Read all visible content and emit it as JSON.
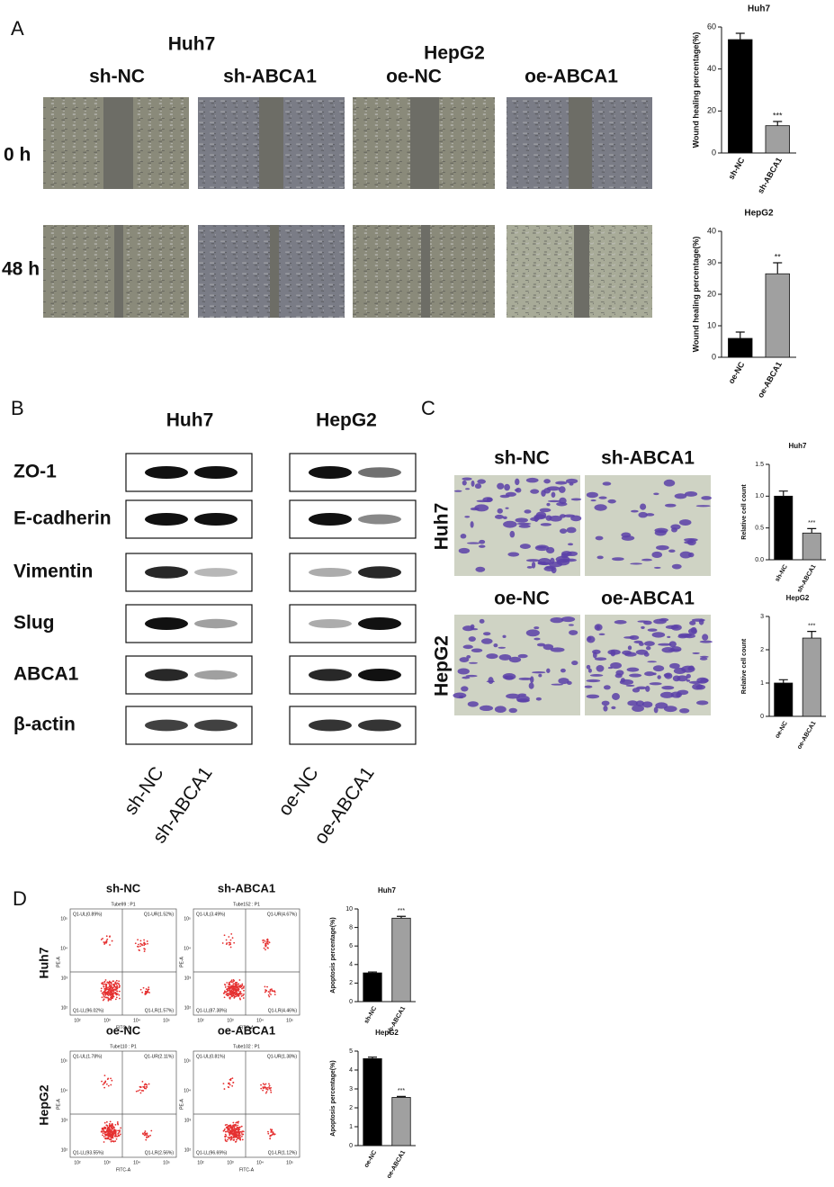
{
  "panel_letters": [
    "A",
    "B",
    "C",
    "D"
  ],
  "panel_a": {
    "groups": [
      "Huh7",
      "HepG2"
    ],
    "columns": [
      "sh-NC",
      "sh-ABCA1",
      "oe-NC",
      "oe-ABCA1"
    ],
    "rows": [
      "0 h",
      "48 h"
    ]
  },
  "panel_b": {
    "groups": [
      "Huh7",
      "HepG2"
    ],
    "proteins": [
      "ZO-1",
      "E-cadherin",
      "Vimentin",
      "Slug",
      "ABCA1",
      "β-actin"
    ],
    "lanes": [
      "sh-NC",
      "sh-ABCA1",
      "oe-NC",
      "oe-ABCA1"
    ]
  },
  "panel_c": {
    "columns": [
      "sh-NC",
      "sh-ABCA1",
      "oe-NC",
      "oe-ABCA1"
    ],
    "rows": [
      "Huh7",
      "HepG2"
    ]
  },
  "panel_d": {
    "rows": [
      "Huh7",
      "HepG2"
    ],
    "x_label": "FITC-A",
    "y_label": "PE-A",
    "axis_ticks": [
      "10²",
      "10³",
      "10⁴",
      "10⁵"
    ],
    "plots": [
      {
        "title": "sh-NC",
        "tube": "Tube99 : P1",
        "ul": "Q1-UL(0.89%)",
        "ur": "Q1-UR(1.52%)",
        "ll": "Q1-LL(96.02%)",
        "lr": "Q1-LR(1.57%)"
      },
      {
        "title": "sh-ABCA1",
        "tube": "Tube152 : P1",
        "ul": "Q1-UL(3.49%)",
        "ur": "Q1-UR(4.67%)",
        "ll": "Q1-LL(87.38%)",
        "lr": "Q1-LR(4.46%)"
      },
      {
        "title": "oe-NC",
        "tube": "Tube110 : P1",
        "ul": "Q1-UL(1.78%)",
        "ur": "Q1-UR(2.11%)",
        "ll": "Q1-LL(93.55%)",
        "lr": "Q1-LR(2.56%)"
      },
      {
        "title": "oe-ABCA1",
        "tube": "Tube102 : P1",
        "ul": "Q1-UL(0.81%)",
        "ur": "Q1-UR(1.38%)",
        "ll": "Q1-LL(96.69%)",
        "lr": "Q1-LR(1.12%)"
      }
    ]
  },
  "chart_data": [
    {
      "type": "bar",
      "title": "Huh7",
      "y_label": "Wound healing percentage(%)",
      "categories": [
        "sh-NC",
        "sh-ABCA1"
      ],
      "values": [
        54,
        13
      ],
      "errors": [
        3,
        2
      ],
      "colors": [
        "#000000",
        "#a0a0a0"
      ],
      "annotations": [
        null,
        "***"
      ],
      "ylim": [
        0,
        60
      ],
      "yticks": [
        0,
        20,
        40,
        60
      ]
    },
    {
      "type": "bar",
      "title": "HepG2",
      "y_label": "Wound healing percentage(%)",
      "categories": [
        "oe-NC",
        "oe-ABCA1"
      ],
      "values": [
        6,
        26.5
      ],
      "errors": [
        2,
        3.5
      ],
      "colors": [
        "#000000",
        "#a0a0a0"
      ],
      "annotations": [
        null,
        "**"
      ],
      "ylim": [
        0,
        40
      ],
      "yticks": [
        0,
        10,
        20,
        30,
        40
      ]
    },
    {
      "type": "bar",
      "title": "Huh7",
      "y_label": "Relative cell count",
      "categories": [
        "sh-NC",
        "sh-ABCA1"
      ],
      "values": [
        1.0,
        0.42
      ],
      "errors": [
        0.08,
        0.07
      ],
      "colors": [
        "#000000",
        "#a0a0a0"
      ],
      "annotations": [
        null,
        "***"
      ],
      "ylim": [
        0,
        1.5
      ],
      "yticks": [
        {
          "value": 0,
          "label": "0.0"
        },
        0.5,
        {
          "value": 1,
          "label": "1.0"
        },
        1.5
      ]
    },
    {
      "type": "bar",
      "title": "HepG2",
      "y_label": "Relative cell count",
      "categories": [
        "oe-NC",
        "oe-ABCA1"
      ],
      "values": [
        1.0,
        2.35
      ],
      "errors": [
        0.1,
        0.2
      ],
      "colors": [
        "#000000",
        "#a0a0a0"
      ],
      "annotations": [
        null,
        "***"
      ],
      "ylim": [
        0,
        3
      ],
      "yticks": [
        0,
        1,
        2,
        3
      ]
    },
    {
      "type": "bar",
      "title": "Huh7",
      "y_label": "Apoptosis percentage(%)",
      "categories": [
        "sh-NC",
        "sh-ABCA1"
      ],
      "values": [
        3.1,
        9.0
      ],
      "errors": [
        0.1,
        0.2
      ],
      "colors": [
        "#000000",
        "#a0a0a0"
      ],
      "annotations": [
        null,
        "***"
      ],
      "ylim": [
        0,
        10
      ],
      "yticks": [
        0,
        2,
        4,
        6,
        8,
        10
      ]
    },
    {
      "type": "bar",
      "title": "HepG2",
      "y_label": "Apoptosis percentage(%)",
      "categories": [
        "oe-NC",
        "oe-ABCA1"
      ],
      "values": [
        4.6,
        2.55
      ],
      "errors": [
        0.08,
        0.05
      ],
      "colors": [
        "#000000",
        "#a0a0a0"
      ],
      "annotations": [
        null,
        "***"
      ],
      "ylim": [
        0,
        5
      ],
      "yticks": [
        0,
        1,
        2,
        3,
        4,
        5
      ]
    }
  ]
}
